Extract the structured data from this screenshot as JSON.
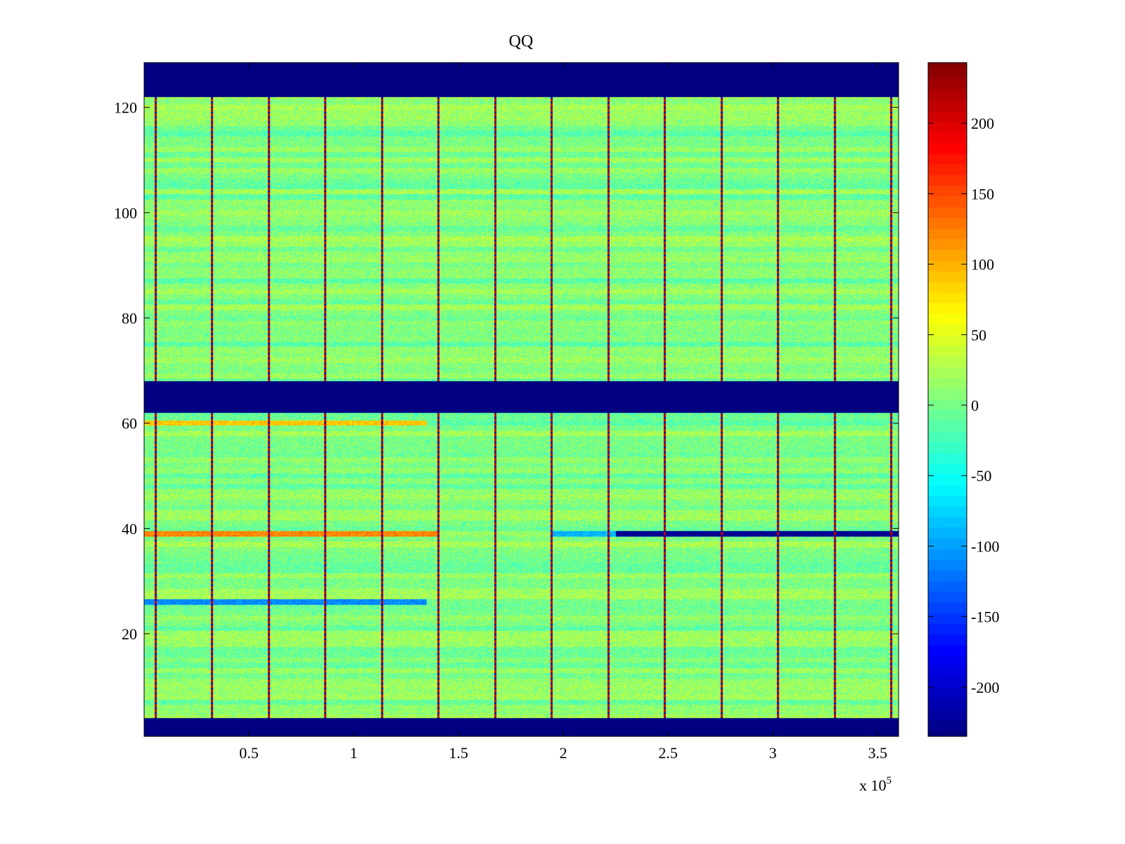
{
  "chart_data": {
    "type": "heatmap",
    "title": "QQ",
    "xlabel": "",
    "ylabel": "",
    "x_multiplier_label": {
      "base": "x 10",
      "exponent": "5"
    },
    "xlim": [
      0,
      360000
    ],
    "ylim": [
      0.5,
      128.5
    ],
    "x_ticks": [
      {
        "value": 50000,
        "label": "0.5"
      },
      {
        "value": 100000,
        "label": "1"
      },
      {
        "value": 150000,
        "label": "1.5"
      },
      {
        "value": 200000,
        "label": "2"
      },
      {
        "value": 250000,
        "label": "2.5"
      },
      {
        "value": 300000,
        "label": "3"
      },
      {
        "value": 350000,
        "label": "3.5"
      }
    ],
    "y_ticks": [
      {
        "value": 20,
        "label": "20"
      },
      {
        "value": 40,
        "label": "40"
      },
      {
        "value": 60,
        "label": "60"
      },
      {
        "value": 80,
        "label": "80"
      },
      {
        "value": 100,
        "label": "100"
      },
      {
        "value": 120,
        "label": "120"
      }
    ],
    "colorbar": {
      "colormap": "jet",
      "clim": [
        -235,
        243
      ],
      "ticks": [
        {
          "value": 200,
          "label": "200"
        },
        {
          "value": 150,
          "label": "150"
        },
        {
          "value": 100,
          "label": "100"
        },
        {
          "value": 50,
          "label": "50"
        },
        {
          "value": 0,
          "label": "0"
        },
        {
          "value": -50,
          "label": "-50"
        },
        {
          "value": -100,
          "label": "-100"
        },
        {
          "value": -150,
          "label": "-150"
        },
        {
          "value": -200,
          "label": "-200"
        }
      ]
    },
    "background_value": 5,
    "empty_channel_bands": [
      {
        "y_from": 122,
        "y_to": 128.5,
        "value": -235
      },
      {
        "y_from": 62,
        "y_to": 68,
        "value": -235
      },
      {
        "y_from": 0.5,
        "y_to": 4,
        "value": -235
      }
    ],
    "periodic_vertical_lines_x": [
      5000,
      32000,
      59000,
      86000,
      113000,
      140000,
      167000,
      194000,
      221000,
      248000,
      275000,
      302000,
      329000,
      356000
    ],
    "periodic_vertical_line_value": 210,
    "highlighted_rows": [
      {
        "y": 39,
        "x_from": 0,
        "x_to": 140000,
        "value": 120
      },
      {
        "y": 39,
        "x_from": 195000,
        "x_to": 225000,
        "value": -90
      },
      {
        "y": 39,
        "x_from": 225000,
        "x_to": 360000,
        "value": -230
      },
      {
        "y": 26,
        "x_from": 0,
        "x_to": 135000,
        "value": -110
      },
      {
        "y": 60,
        "x_from": 0,
        "x_to": 135000,
        "value": 90
      }
    ]
  }
}
